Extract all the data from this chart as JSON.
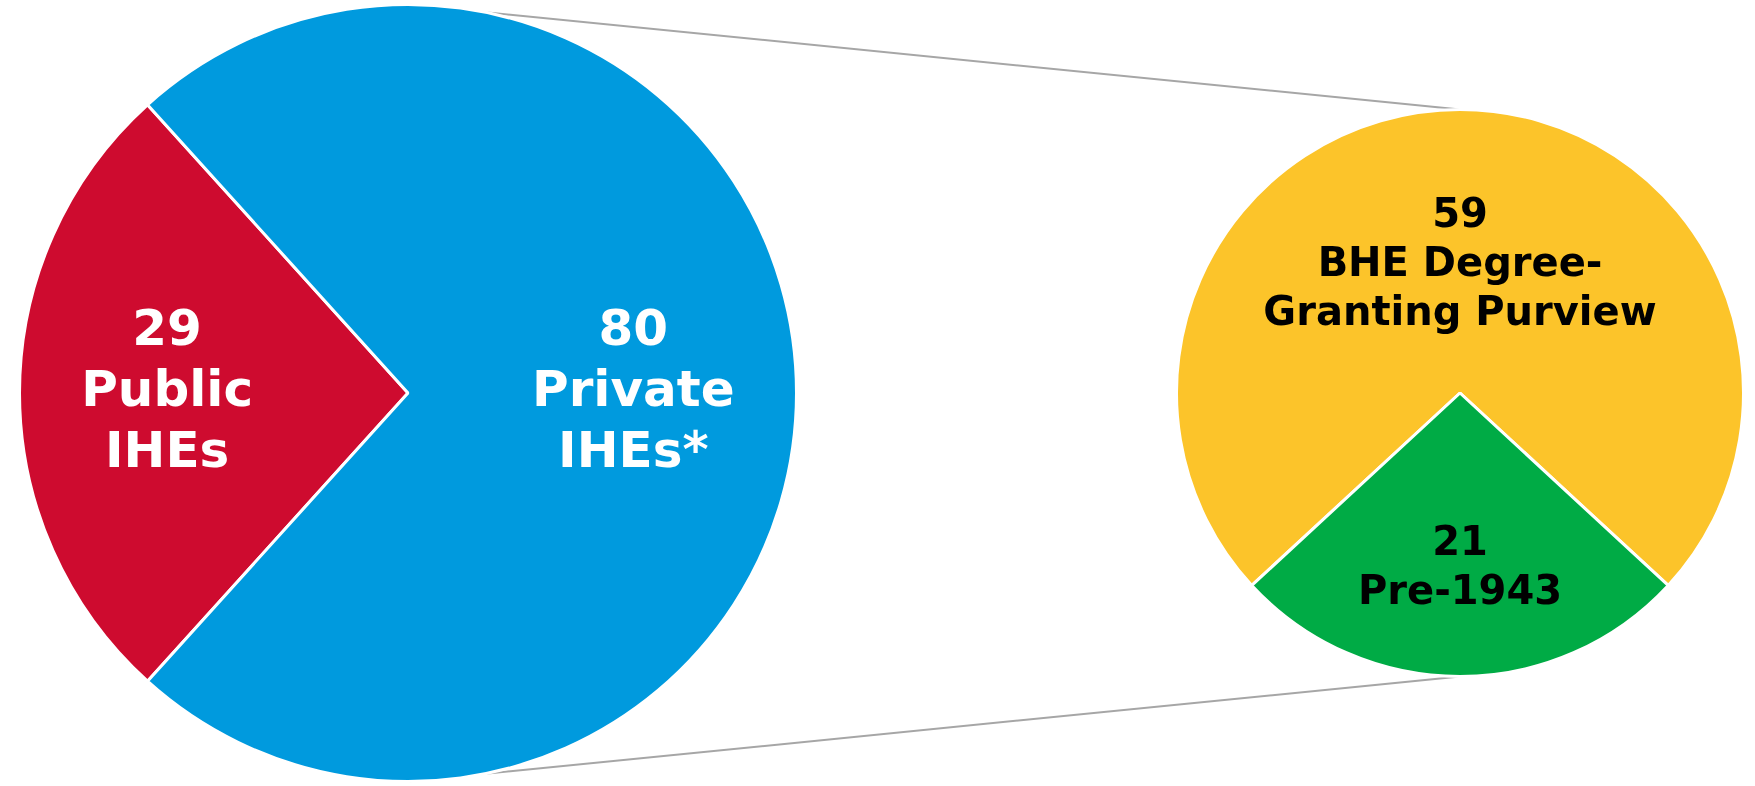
{
  "chart_data": [
    {
      "type": "pie",
      "categories": [
        "Public IHEs",
        "Private IHEs*"
      ],
      "values": [
        29,
        80
      ],
      "colors": [
        "#ce0b2f",
        "#009ade"
      ],
      "data_labels": true,
      "legend": false
    },
    {
      "type": "pie",
      "categories": [
        "BHE Degree-Granting Purview",
        "Pre-1943"
      ],
      "values": [
        59,
        21
      ],
      "colors": [
        "#fcc42a",
        "#00ab45"
      ],
      "data_labels": true,
      "legend": false
    }
  ]
}
